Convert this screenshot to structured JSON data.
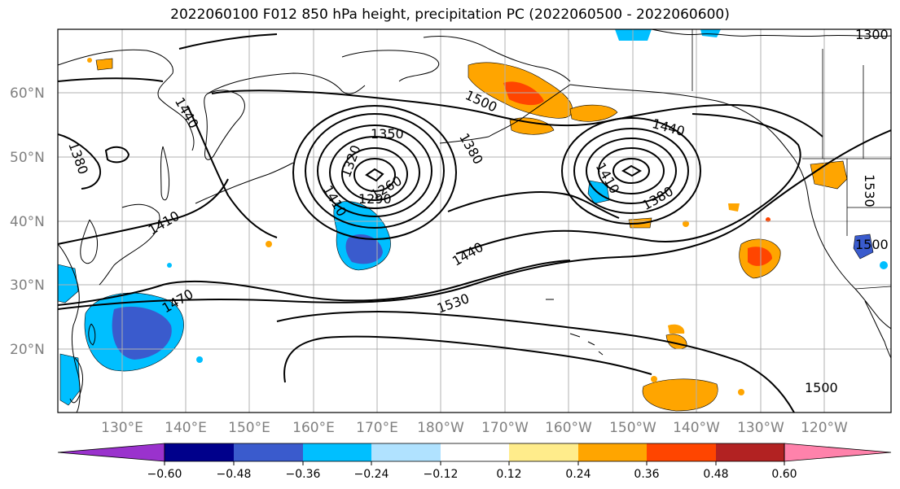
{
  "title": "2022060100 F012 850 hPa height, precipitation PC (2022060500 - 2022060600)",
  "map": {
    "lat_labels": [
      "60°N",
      "50°N",
      "40°N",
      "30°N",
      "20°N"
    ],
    "lon_labels": [
      "130°E",
      "140°E",
      "150°E",
      "160°E",
      "170°E",
      "180°W",
      "170°W",
      "160°W",
      "150°W",
      "140°W",
      "130°W",
      "120°W"
    ],
    "contour_labels": [
      "1440",
      "1380",
      "1410",
      "1470",
      "1350",
      "1320",
      "1260",
      "1290",
      "1410",
      "1440",
      "1500",
      "1380",
      "1440",
      "1410",
      "1380",
      "1530",
      "1500",
      "1530",
      "1500",
      "1300"
    ],
    "colors": {
      "frame": "#000000",
      "grid": "#b0b0b0",
      "contour": "#000000"
    }
  },
  "colorbar": {
    "tick_labels": [
      "−0.60",
      "−0.48",
      "−0.36",
      "−0.24",
      "−0.12",
      "0.12",
      "0.24",
      "0.36",
      "0.48",
      "0.60"
    ],
    "colors": [
      "#9a32cd",
      "#00008b",
      "#3a5bcd",
      "#00bfff",
      "#b0e2ff",
      "#ffffff",
      "#ffec8b",
      "#ffa500",
      "#ff4500",
      "#b22222",
      "#ff82ab"
    ]
  }
}
